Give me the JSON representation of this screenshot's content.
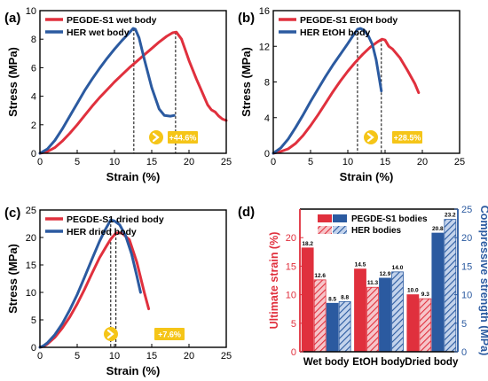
{
  "colors": {
    "red": "#e0303d",
    "blue": "#2b5aa0",
    "badge": "#f5c518",
    "axis": "#000000"
  },
  "chart_data": [
    {
      "type": "line",
      "panel_label": "(a)",
      "xlabel": "Strain (%)",
      "ylabel": "Stress (MPa)",
      "xlim": [
        0,
        25
      ],
      "ylim": [
        0,
        10
      ],
      "xticks": [
        "0",
        "5",
        "10",
        "15",
        "20",
        "25"
      ],
      "yticks": [
        "0",
        "2",
        "4",
        "6",
        "8",
        "10"
      ],
      "legend_position": "top-left",
      "annotation": "+44.6%",
      "series": [
        {
          "name": "PEGDE-S1 wet body",
          "color": "red",
          "points": [
            [
              0,
              0
            ],
            [
              1,
              0.12
            ],
            [
              2,
              0.4
            ],
            [
              3,
              0.85
            ],
            [
              4,
              1.4
            ],
            [
              5,
              2.0
            ],
            [
              6,
              2.65
            ],
            [
              7,
              3.3
            ],
            [
              8,
              3.9
            ],
            [
              9,
              4.45
            ],
            [
              10,
              5.0
            ],
            [
              11,
              5.5
            ],
            [
              12,
              6.0
            ],
            [
              13,
              6.45
            ],
            [
              14,
              6.9
            ],
            [
              15,
              7.35
            ],
            [
              16,
              7.8
            ],
            [
              17,
              8.2
            ],
            [
              17.8,
              8.45
            ],
            [
              18.3,
              8.5
            ],
            [
              19,
              8.0
            ],
            [
              20,
              6.5
            ],
            [
              21,
              5.2
            ],
            [
              21.5,
              4.6
            ],
            [
              22,
              4.0
            ],
            [
              22.5,
              3.4
            ],
            [
              23,
              3.05
            ],
            [
              23.5,
              2.9
            ],
            [
              24,
              2.6
            ],
            [
              24.5,
              2.4
            ],
            [
              25,
              2.3
            ]
          ]
        },
        {
          "name": "HER wet body",
          "color": "blue",
          "points": [
            [
              0,
              0
            ],
            [
              1,
              0.3
            ],
            [
              2,
              0.9
            ],
            [
              3,
              1.7
            ],
            [
              4,
              2.6
            ],
            [
              5,
              3.5
            ],
            [
              6,
              4.4
            ],
            [
              7,
              5.2
            ],
            [
              8,
              5.95
            ],
            [
              9,
              6.65
            ],
            [
              10,
              7.3
            ],
            [
              11,
              7.9
            ],
            [
              12,
              8.45
            ],
            [
              12.5,
              8.75
            ],
            [
              12.8,
              8.7
            ],
            [
              13.3,
              8.1
            ],
            [
              14,
              6.6
            ],
            [
              15,
              4.6
            ],
            [
              16,
              3.1
            ],
            [
              16.7,
              2.65
            ],
            [
              17.5,
              2.6
            ],
            [
              18,
              2.65
            ]
          ]
        }
      ]
    },
    {
      "type": "line",
      "panel_label": "(b)",
      "xlabel": "Strain (%)",
      "ylabel": "Stress (MPa)",
      "xlim": [
        0,
        25
      ],
      "ylim": [
        0,
        16
      ],
      "xticks": [
        "0",
        "5",
        "10",
        "15",
        "20",
        "25"
      ],
      "yticks": [
        "0",
        "4",
        "8",
        "12",
        "16"
      ],
      "legend_position": "top-left",
      "annotation": "+28.5%",
      "series": [
        {
          "name": "PEGDE-S1 EtOH body",
          "color": "red",
          "points": [
            [
              0,
              0
            ],
            [
              1,
              0.2
            ],
            [
              2,
              0.5
            ],
            [
              3,
              1.1
            ],
            [
              4,
              2.0
            ],
            [
              5,
              3.1
            ],
            [
              6,
              4.3
            ],
            [
              7,
              5.6
            ],
            [
              8,
              6.9
            ],
            [
              9,
              8.1
            ],
            [
              10,
              9.2
            ],
            [
              11,
              10.2
            ],
            [
              12,
              11.1
            ],
            [
              13,
              11.9
            ],
            [
              14,
              12.5
            ],
            [
              14.6,
              12.8
            ],
            [
              15,
              12.7
            ],
            [
              15.5,
              12.0
            ],
            [
              16,
              11.7
            ],
            [
              17,
              10.7
            ],
            [
              18,
              9.3
            ],
            [
              19,
              7.8
            ],
            [
              19.5,
              6.8
            ]
          ]
        },
        {
          "name": "HER EtOH body",
          "color": "blue",
          "points": [
            [
              0,
              0
            ],
            [
              1,
              0.6
            ],
            [
              2,
              1.6
            ],
            [
              3,
              2.9
            ],
            [
              4,
              4.3
            ],
            [
              5,
              5.8
            ],
            [
              6,
              7.2
            ],
            [
              7,
              8.6
            ],
            [
              8,
              9.9
            ],
            [
              9,
              11.1
            ],
            [
              10,
              12.3
            ],
            [
              10.7,
              13.2
            ],
            [
              11.3,
              13.9
            ],
            [
              11.7,
              14.0
            ],
            [
              12.2,
              13.8
            ],
            [
              12.8,
              13.1
            ],
            [
              13.3,
              12.2
            ],
            [
              13.8,
              10.5
            ],
            [
              14.2,
              8.5
            ],
            [
              14.5,
              7.0
            ]
          ]
        }
      ]
    },
    {
      "type": "line",
      "panel_label": "(c)",
      "xlabel": "Strain (%)",
      "ylabel": "Stress (MPa)",
      "xlim": [
        0,
        25
      ],
      "ylim": [
        0,
        25
      ],
      "xticks": [
        "0",
        "5",
        "10",
        "15",
        "20",
        "25"
      ],
      "yticks": [
        "0",
        "5",
        "10",
        "15",
        "20",
        "25"
      ],
      "legend_position": "top-left",
      "annotation": "+7.6%",
      "series": [
        {
          "name": "PEGDE-S1 dried body",
          "color": "red",
          "points": [
            [
              0,
              0
            ],
            [
              0.5,
              0.2
            ],
            [
              1,
              0.6
            ],
            [
              2,
              1.8
            ],
            [
              3,
              3.5
            ],
            [
              4,
              5.5
            ],
            [
              5,
              7.9
            ],
            [
              6,
              10.6
            ],
            [
              7,
              13.5
            ],
            [
              8,
              16.3
            ],
            [
              9,
              18.6
            ],
            [
              9.5,
              19.7
            ],
            [
              10.2,
              20.8
            ],
            [
              11,
              20.8
            ],
            [
              12,
              19.6
            ],
            [
              13,
              15.5
            ],
            [
              14,
              10.0
            ],
            [
              14.6,
              7.0
            ]
          ]
        },
        {
          "name": "HER dried body",
          "color": "blue",
          "points": [
            [
              0,
              0
            ],
            [
              0.5,
              0.3
            ],
            [
              1,
              0.8
            ],
            [
              2,
              2.3
            ],
            [
              3,
              4.3
            ],
            [
              4,
              6.8
            ],
            [
              5,
              9.6
            ],
            [
              6,
              12.8
            ],
            [
              7,
              16.1
            ],
            [
              8,
              19.3
            ],
            [
              8.8,
              21.5
            ],
            [
              9.5,
              23.2
            ],
            [
              10,
              23.0
            ],
            [
              10.7,
              22.3
            ],
            [
              11.5,
              20.3
            ],
            [
              12.3,
              17.0
            ],
            [
              13,
              13.0
            ],
            [
              13.5,
              10.0
            ]
          ]
        }
      ]
    },
    {
      "type": "bar",
      "panel_label": "(d)",
      "categories": [
        "Wet body",
        "EtOH body",
        "Dried body"
      ],
      "ylabel": "Ultimate strain (%)",
      "ylim": [
        0,
        25
      ],
      "yticks": [
        "0",
        "5",
        "10",
        "15",
        "20"
      ],
      "y2label": "Compressive strength (MPa)",
      "y2lim": [
        0,
        25
      ],
      "y2ticks": [
        "0",
        "5",
        "10",
        "15",
        "20",
        "25"
      ],
      "legend_position": "top-center",
      "legend": [
        "PEGDE-S1 bodies",
        "HER bodies"
      ],
      "series": [
        {
          "metric": "strain",
          "group": "PEGDE-S1",
          "color": "red",
          "pattern": "solid",
          "values": [
            18.2,
            14.5,
            10.0
          ],
          "labels": [
            "18.2",
            "14.5",
            "10.0"
          ]
        },
        {
          "metric": "strain",
          "group": "HER",
          "color": "red",
          "pattern": "hatched",
          "values": [
            12.6,
            11.3,
            9.3
          ],
          "labels": [
            "12.6",
            "11.3",
            "9.3"
          ]
        },
        {
          "metric": "strength",
          "group": "PEGDE-S1",
          "color": "blue",
          "pattern": "solid",
          "values": [
            8.5,
            12.9,
            20.8
          ],
          "labels": [
            "8.5",
            "12.9",
            "20.8"
          ]
        },
        {
          "metric": "strength",
          "group": "HER",
          "color": "blue",
          "pattern": "hatched",
          "values": [
            8.8,
            14.0,
            23.2
          ],
          "labels": [
            "8.8",
            "14.0",
            "23.2"
          ]
        }
      ]
    }
  ]
}
